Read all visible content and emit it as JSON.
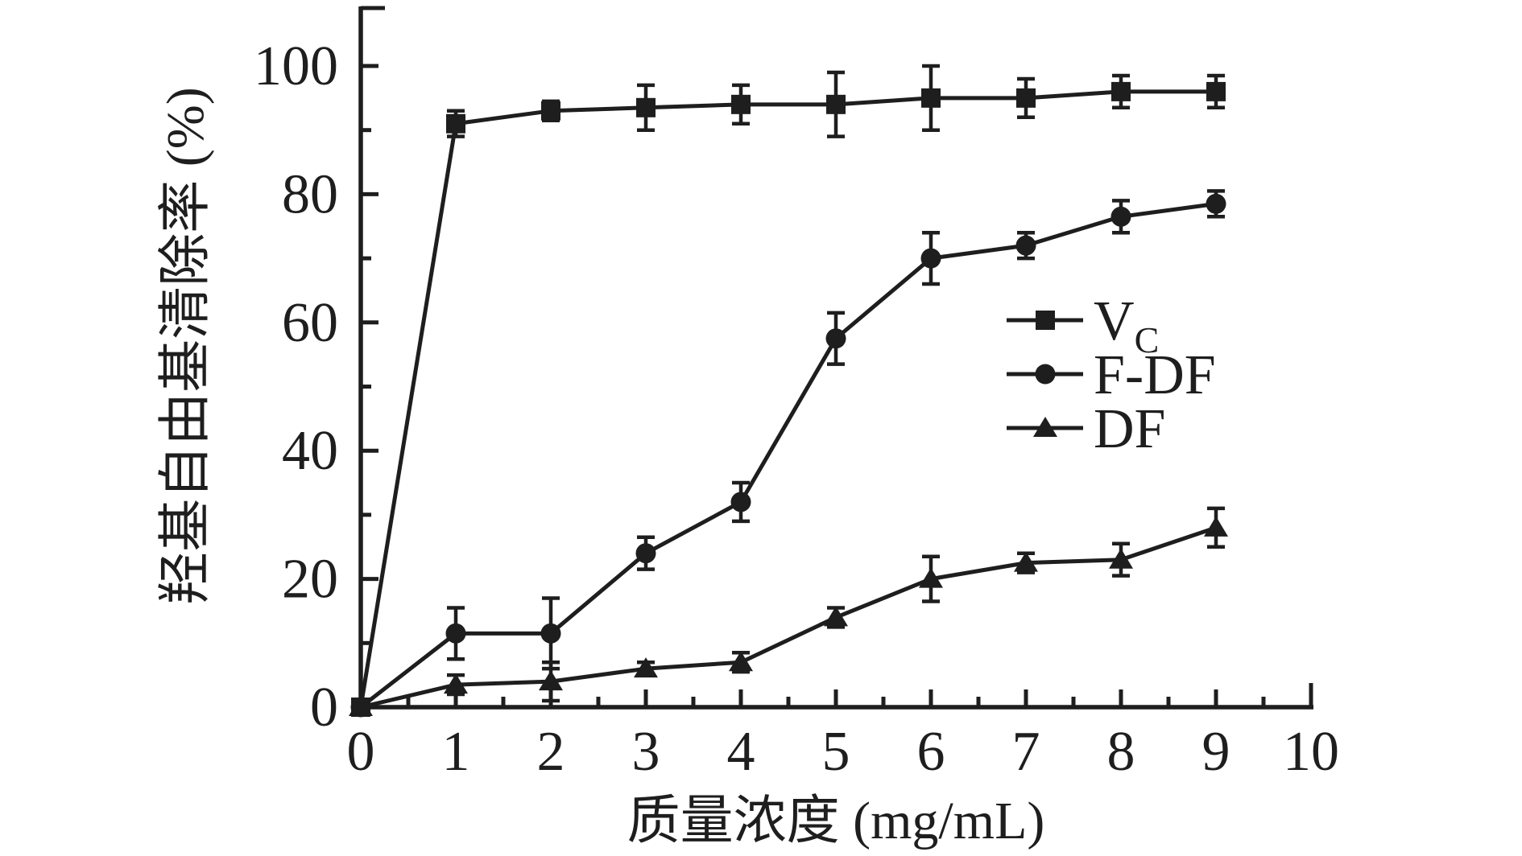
{
  "chart_data": {
    "type": "line",
    "title": "",
    "xlabel": "质量浓度 (mg/mL)",
    "ylabel": "羟基自由基清除率 (%)",
    "x": [
      0,
      1,
      2,
      3,
      4,
      5,
      6,
      7,
      8,
      9
    ],
    "series": [
      {
        "name": "VC",
        "legend_label": "V",
        "legend_sub": "C",
        "marker": "square",
        "values": [
          0,
          91,
          93,
          93.5,
          94,
          94,
          95,
          95,
          96,
          96
        ],
        "errors": [
          0,
          2,
          1.5,
          3.5,
          3,
          5,
          5,
          3,
          2.5,
          2.5
        ]
      },
      {
        "name": "F-DF",
        "legend_label": "F-DF",
        "legend_sub": "",
        "marker": "circle",
        "values": [
          0,
          11.5,
          11.5,
          24,
          32,
          57.5,
          70,
          72,
          76.5,
          78.5
        ],
        "errors": [
          0,
          4,
          5.5,
          2.5,
          3,
          4,
          4,
          2,
          2.5,
          2
        ]
      },
      {
        "name": "DF",
        "legend_label": "DF",
        "legend_sub": "",
        "marker": "triangle",
        "values": [
          0,
          3.5,
          4,
          6,
          7,
          14,
          20,
          22.5,
          23,
          28
        ],
        "errors": [
          0,
          1.5,
          3,
          1,
          1.5,
          1.5,
          3.5,
          1.5,
          2.5,
          3
        ]
      }
    ],
    "xlim": [
      0,
      10
    ],
    "ylim": [
      0,
      100
    ],
    "x_ticks": [
      0,
      1,
      2,
      3,
      4,
      5,
      6,
      7,
      8,
      9,
      10
    ],
    "x_tick_labels": [
      "0",
      "1",
      "2",
      "3",
      "4",
      "5",
      "6",
      "7",
      "8",
      "9",
      "10"
    ],
    "y_ticks": [
      0,
      20,
      40,
      60,
      80,
      100
    ],
    "y_tick_labels": [
      "0",
      "20",
      "40",
      "60",
      "80",
      "100"
    ],
    "x_minor_ticks": [
      0.5,
      1.5,
      2.5,
      3.5,
      4.5,
      5.5,
      6.5,
      7.5,
      8.5,
      9.5
    ],
    "y_minor_ticks": [
      10,
      30,
      50,
      70,
      90
    ],
    "grid": false,
    "error_bars": true,
    "legend_position": "inside-right-middle",
    "line_color": "#1e1e1e",
    "background_color": "#ffffff"
  }
}
